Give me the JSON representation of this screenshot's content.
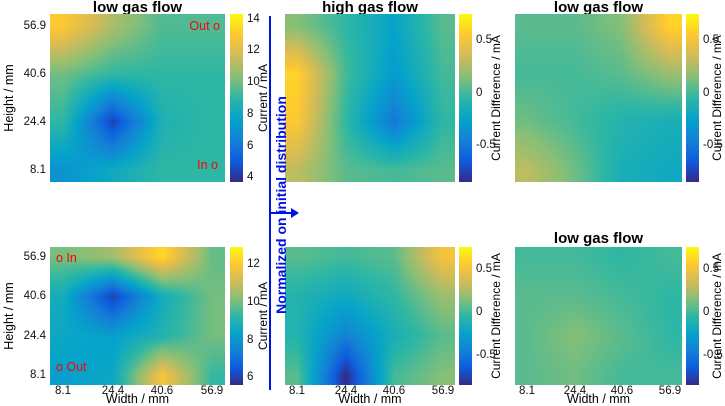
{
  "figure": {
    "col_titles": [
      "low gas flow",
      "high gas flow",
      "low gas flow"
    ],
    "bottom_right_title": "low gas flow",
    "axis": {
      "xlabel": "Width / mm",
      "ylabel": "Height / mm",
      "xticks": [
        "8.1",
        "24.4",
        "40.6",
        "56.9"
      ],
      "yticks": [
        "56.9",
        "40.6",
        "24.4",
        "8.1"
      ],
      "xlim": [
        4,
        61
      ],
      "ylim": [
        4,
        61
      ]
    },
    "markers": {
      "color": "#ff0000",
      "top_panel_outlet": "Out o",
      "top_panel_inlet": "In o",
      "bottom_panel_inlet": "o In",
      "bottom_panel_outlet": "o Out"
    },
    "note": {
      "text": "Normalized on initial distribution",
      "color": "#0011e8"
    },
    "colormap_stops": [
      [
        0,
        "#352a87"
      ],
      [
        0.125,
        "#0f5cdd"
      ],
      [
        0.25,
        "#1481d6"
      ],
      [
        0.375,
        "#06a4ca"
      ],
      [
        0.5,
        "#2eb7a4"
      ],
      [
        0.625,
        "#87bf77"
      ],
      [
        0.75,
        "#d1bb59"
      ],
      [
        0.875,
        "#fec832"
      ],
      [
        1,
        "#f9fb0e"
      ]
    ]
  },
  "chart_data": [
    {
      "type": "heatmap",
      "position": "top-left",
      "title": "low gas flow",
      "colorbar_label": "Current / mA",
      "colorbar_ticks": [
        "14",
        "12",
        "10",
        "8",
        "6",
        "4"
      ],
      "zmin": 3.7,
      "zmax": 14.3,
      "x": [
        8.1,
        24.4,
        40.6,
        56.9
      ],
      "y_top_to_bottom": [
        56.9,
        40.6,
        24.4,
        8.1
      ],
      "values": [
        [
          13.0,
          11.0,
          9.5,
          9.5
        ],
        [
          10.0,
          9.0,
          9.0,
          9.0
        ],
        [
          9.0,
          4.3,
          8.5,
          9.0
        ],
        [
          7.0,
          8.0,
          9.0,
          9.0
        ]
      ]
    },
    {
      "type": "heatmap",
      "position": "top-middle",
      "title": "high gas flow",
      "colorbar_label": "Current Difference / mA",
      "colorbar_ticks": [
        "0.5",
        "0",
        "-0.5"
      ],
      "zmin": -0.85,
      "zmax": 0.75,
      "x": [
        8.1,
        24.4,
        40.6,
        56.9
      ],
      "y_top_to_bottom": [
        56.9,
        40.6,
        24.4,
        8.1
      ],
      "values": [
        [
          0.15,
          -0.05,
          -0.25,
          0.05
        ],
        [
          0.6,
          0.0,
          -0.3,
          0.0
        ],
        [
          0.55,
          -0.05,
          -0.5,
          -0.05
        ],
        [
          0.3,
          0.05,
          0.0,
          0.05
        ]
      ]
    },
    {
      "type": "heatmap",
      "position": "top-right",
      "title": "low gas flow",
      "colorbar_label": "Current Difference / mA",
      "colorbar_ticks": [
        "0.5",
        "0",
        "-0.5"
      ],
      "zmin": -0.85,
      "zmax": 0.75,
      "x": [
        8.1,
        24.4,
        40.6,
        56.9
      ],
      "y_top_to_bottom": [
        56.9,
        40.6,
        24.4,
        8.1
      ],
      "values": [
        [
          0.05,
          0.05,
          0.15,
          0.6
        ],
        [
          0.0,
          0.0,
          0.05,
          0.2
        ],
        [
          0.1,
          0.0,
          -0.1,
          -0.15
        ],
        [
          0.3,
          0.1,
          -0.15,
          -0.2
        ]
      ]
    },
    {
      "type": "heatmap",
      "position": "bottom-left",
      "title": "",
      "colorbar_label": "Current / mA",
      "colorbar_ticks": [
        "12",
        "10",
        "8",
        "6"
      ],
      "zmin": 5.6,
      "zmax": 12.9,
      "x": [
        8.1,
        24.4,
        40.6,
        56.9
      ],
      "y_top_to_bottom": [
        56.9,
        40.6,
        24.4,
        8.1
      ],
      "values": [
        [
          10.0,
          10.5,
          12.3,
          9.8
        ],
        [
          8.7,
          6.0,
          8.7,
          10.0
        ],
        [
          8.5,
          8.2,
          9.0,
          10.0
        ],
        [
          8.2,
          8.5,
          11.8,
          9.3
        ]
      ]
    },
    {
      "type": "heatmap",
      "position": "bottom-middle",
      "title": "",
      "colorbar_label": "Current Difference / mA",
      "colorbar_ticks": [
        "0.5",
        "0",
        "-0.5"
      ],
      "zmin": -0.85,
      "zmax": 0.75,
      "x": [
        8.1,
        24.4,
        40.6,
        56.9
      ],
      "y_top_to_bottom": [
        56.9,
        40.6,
        24.4,
        8.1
      ],
      "values": [
        [
          0.05,
          0.0,
          0.05,
          0.5
        ],
        [
          -0.1,
          -0.2,
          -0.05,
          0.2
        ],
        [
          -0.1,
          -0.45,
          -0.15,
          0.05
        ],
        [
          0.05,
          -0.85,
          0.0,
          0.15
        ]
      ]
    },
    {
      "type": "heatmap",
      "position": "bottom-right",
      "title": "low gas flow",
      "colorbar_label": "Current Difference / mA",
      "colorbar_ticks": [
        "0.5",
        "0",
        "-0.5"
      ],
      "zmin": -0.85,
      "zmax": 0.75,
      "x": [
        8.1,
        24.4,
        40.6,
        56.9
      ],
      "y_top_to_bottom": [
        56.9,
        40.6,
        24.4,
        8.1
      ],
      "values": [
        [
          0.0,
          0.0,
          -0.05,
          0.0
        ],
        [
          0.05,
          0.05,
          0.0,
          -0.05
        ],
        [
          0.05,
          0.15,
          0.05,
          -0.05
        ],
        [
          0.05,
          0.1,
          0.0,
          0.0
        ]
      ]
    }
  ]
}
